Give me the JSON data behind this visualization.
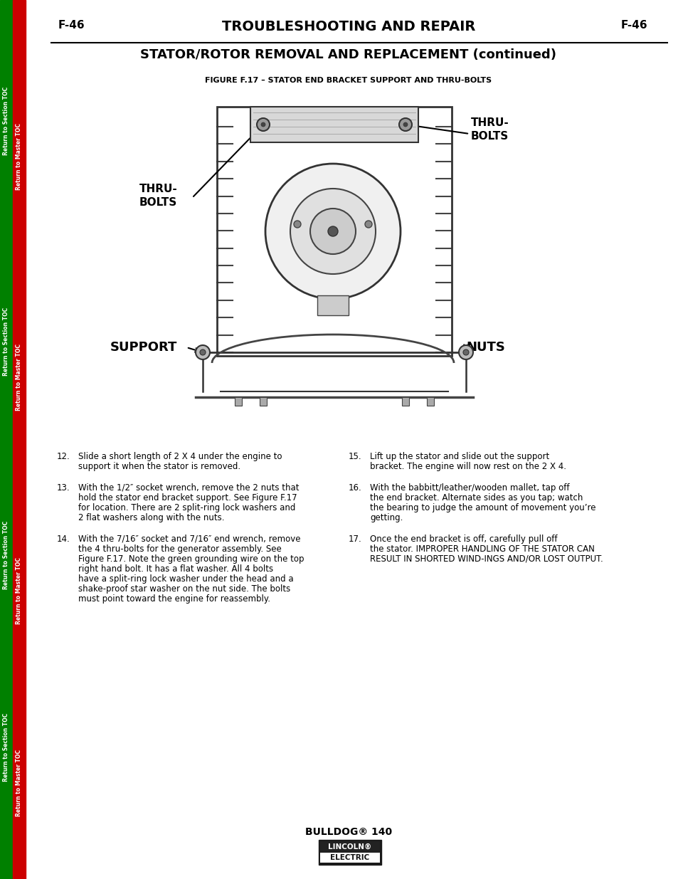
{
  "page_bg": "#ffffff",
  "left_bar_green": "#008000",
  "left_bar_red": "#cc0000",
  "header_text_left": "F-46",
  "header_text_center": "TROUBLESHOOTING AND REPAIR",
  "header_text_right": "F-46",
  "subheader": "STATOR/ROTOR REMOVAL AND REPLACEMENT (continued)",
  "figure_caption": "FIGURE F.17 – STATOR END BRACKET SUPPORT AND THRU-BOLTS",
  "sidebar_green": "Return to Section TOC",
  "sidebar_red": "Return to Master TOC",
  "label_thru_bolts_top": "THRU-\nBOLTS",
  "label_thru_bolts_left": "THRU-\nBOLTS",
  "label_support": "SUPPORT",
  "label_nuts": "NUTS",
  "footer_model": "BULLDOG® 140",
  "items_left": [
    {
      "num": "12.",
      "text": "Slide a short length of 2 X 4 under the engine to support it when the stator is removed."
    },
    {
      "num": "13.",
      "text": "With the 1/2″ socket wrench, remove the 2 nuts that hold the stator end bracket support. See Figure F.17 for location.  There are 2 split-ring lock washers and 2 flat washers along with the nuts."
    },
    {
      "num": "14.",
      "text": "With the 7/16″ socket and 7/16″ end wrench, remove the 4 thru-bolts for the generator assembly.  See Figure F.17.  Note the green grounding wire on the top right hand bolt.  It has a flat washer.  All 4 bolts have a split-ring lock washer under the head and a shake-proof star washer on the nut side.  The bolts must point toward the engine for reassembly."
    }
  ],
  "items_right": [
    {
      "num": "15.",
      "text": "Lift up the stator and slide out the support bracket.  The engine will now rest on the 2 X 4."
    },
    {
      "num": "16.",
      "text": "With the babbitt/leather/wooden mallet, tap off the end bracket.  Alternate sides as you tap; watch the bearing to judge the amount of movement you’re getting."
    },
    {
      "num": "17.",
      "text": "Once the end bracket is off, carefully pull off the stator.  IMPROPER HANDLING OF THE STATOR CAN RESULT IN SHORTED WIND-INGS AND/OR LOST OUTPUT."
    }
  ]
}
